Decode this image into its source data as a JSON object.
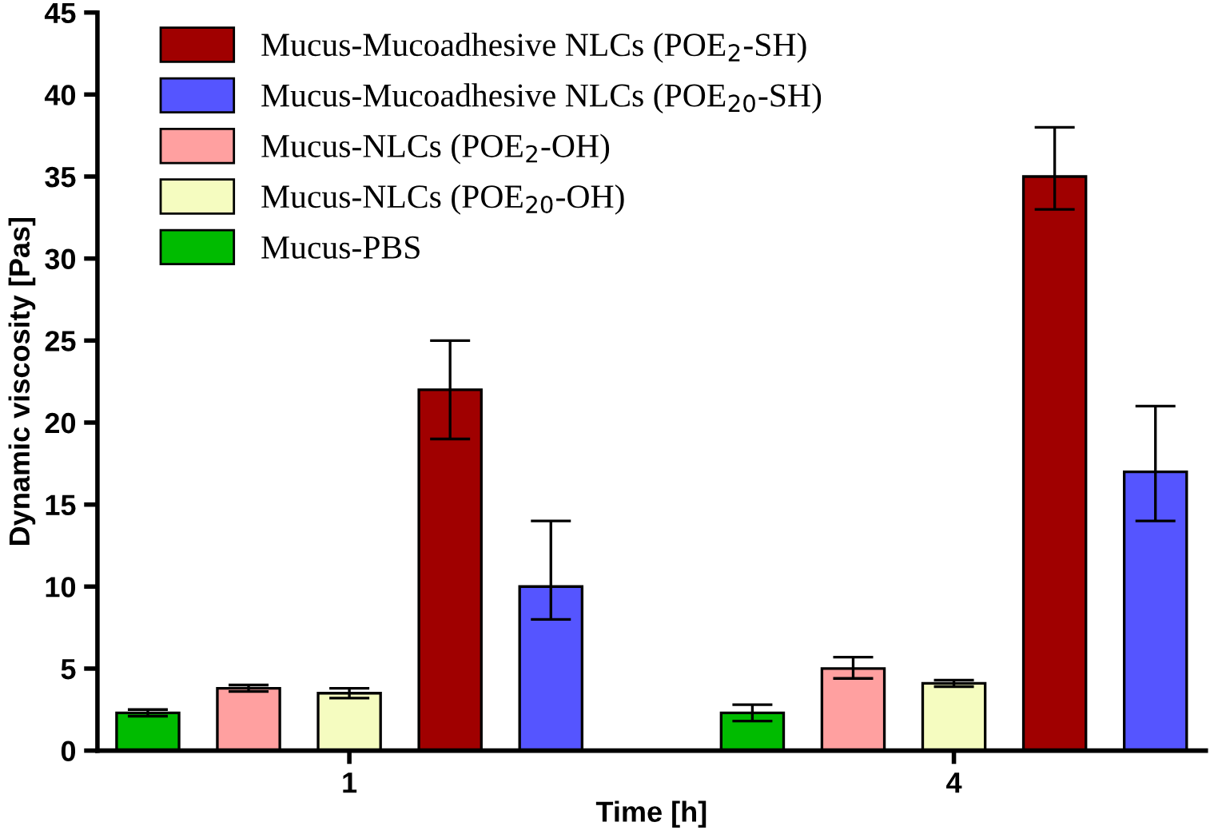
{
  "chart_data": {
    "type": "bar",
    "xlabel": "Time [h]",
    "ylabel": "Dynamic viscosity [Pas]",
    "categories": [
      "1",
      "4"
    ],
    "series": [
      {
        "name": "Mucus-PBS",
        "color": "#00bb00",
        "values": [
          2.3,
          2.3
        ],
        "errors": [
          [
            2.1,
            2.5
          ],
          [
            1.8,
            2.8
          ]
        ]
      },
      {
        "name": "Mucus-NLCs (POE$_{2}$-OH)",
        "color": "#ffa0a0",
        "values": [
          3.8,
          5.0
        ],
        "errors": [
          [
            3.6,
            4.0
          ],
          [
            4.4,
            5.7
          ]
        ]
      },
      {
        "name": "Mucus-NLCs (POE$_{20}$-OH)",
        "color": "#f5fcc0",
        "values": [
          3.5,
          4.1
        ],
        "errors": [
          [
            3.2,
            3.8
          ],
          [
            3.9,
            4.3
          ]
        ]
      },
      {
        "name": "Mucus-Mucoadhesive NLCs (POE$_{2}$-SH)",
        "color": "#a00000",
        "values": [
          22,
          35
        ],
        "errors": [
          [
            19,
            25
          ],
          [
            33,
            38
          ]
        ]
      },
      {
        "name": "Mucus-Mucoadhesive NLCs (POE$_{20}$-SH)",
        "color": "#5555ff",
        "values": [
          10,
          17
        ],
        "errors": [
          [
            8,
            14
          ],
          [
            14,
            21
          ]
        ]
      }
    ],
    "ylim": [
      0,
      45
    ],
    "yticks": [
      0,
      5,
      10,
      15,
      20,
      25,
      30,
      35,
      40,
      45
    ],
    "grid": false,
    "legend": "top left"
  }
}
